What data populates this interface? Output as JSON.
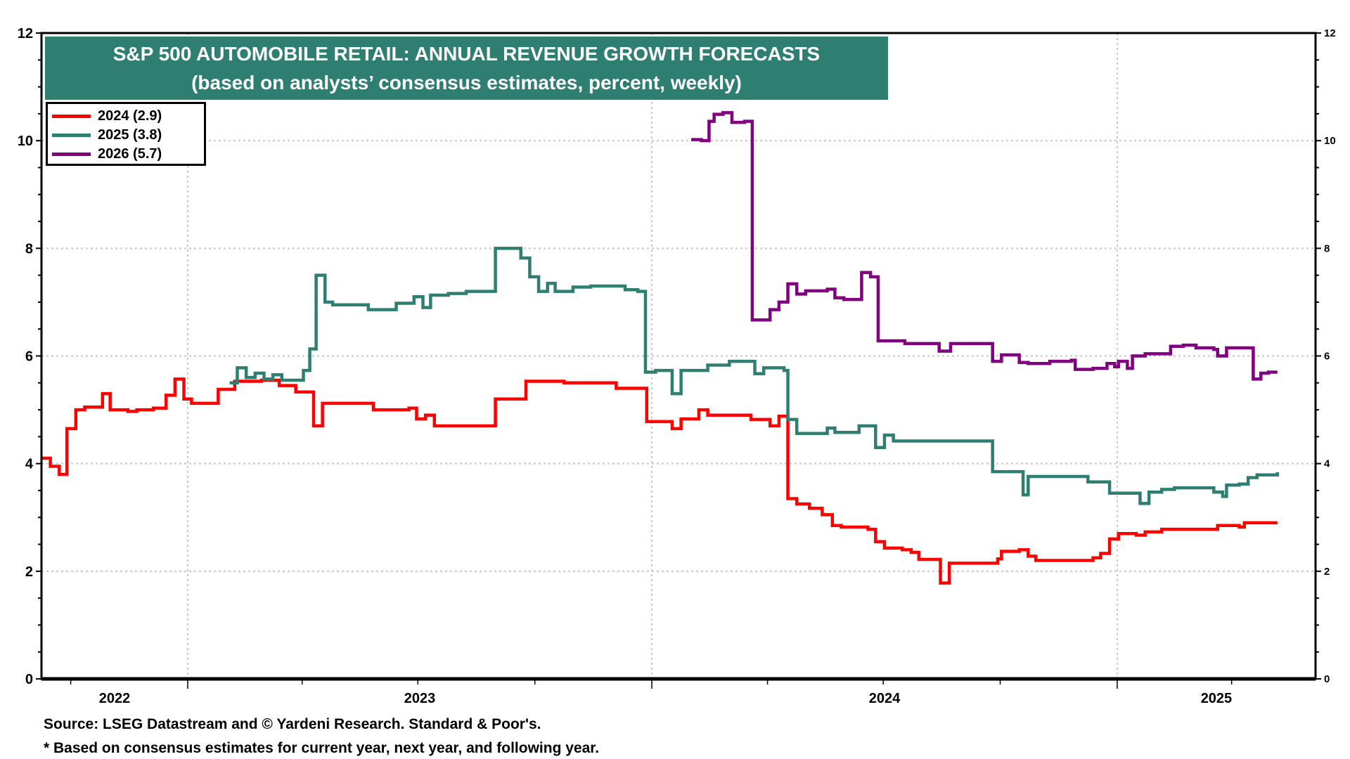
{
  "chart_data": {
    "type": "line",
    "title": "S&P 500 AUTOMOBILE RETAIL: ANNUAL REVENUE GROWTH FORECASTS",
    "subtitle": "(based on analysts’ consensus estimates, percent, weekly)",
    "xlabel": "",
    "ylabel": "",
    "xlim": [
      "2022-09-08",
      "2025-06-06"
    ],
    "ylim": [
      0,
      12
    ],
    "yticks": [
      "0",
      "2",
      "4",
      "6",
      "8",
      "10",
      "12"
    ],
    "xtick_labels": [
      "2022",
      "2023",
      "2024",
      "2025"
    ],
    "grid": true,
    "legend_position": "top-left",
    "step": true,
    "series": [
      {
        "name": "2024 (2.9)",
        "color": "#ff0000",
        "points": [
          [
            "2022-09-08",
            4.1
          ],
          [
            "2022-09-15",
            3.95
          ],
          [
            "2022-09-22",
            3.8
          ],
          [
            "2022-09-28",
            4.65
          ],
          [
            "2022-10-05",
            5.0
          ],
          [
            "2022-10-12",
            5.05
          ],
          [
            "2022-10-26",
            5.3
          ],
          [
            "2022-11-01",
            5.0
          ],
          [
            "2022-11-15",
            4.97
          ],
          [
            "2022-11-22",
            5.0
          ],
          [
            "2022-12-05",
            5.03
          ],
          [
            "2022-12-15",
            5.27
          ],
          [
            "2022-12-22",
            5.57
          ],
          [
            "2022-12-29",
            5.2
          ],
          [
            "2023-01-04",
            5.12
          ],
          [
            "2023-01-25",
            5.38
          ],
          [
            "2023-02-07",
            5.53
          ],
          [
            "2023-02-28",
            5.55
          ],
          [
            "2023-03-14",
            5.45
          ],
          [
            "2023-03-27",
            5.33
          ],
          [
            "2023-04-10",
            4.7
          ],
          [
            "2023-04-17",
            5.12
          ],
          [
            "2023-05-27",
            5.0
          ],
          [
            "2023-06-24",
            5.03
          ],
          [
            "2023-06-30",
            4.83
          ],
          [
            "2023-07-07",
            4.9
          ],
          [
            "2023-07-14",
            4.7
          ],
          [
            "2023-08-31",
            5.2
          ],
          [
            "2023-09-24",
            5.53
          ],
          [
            "2023-10-24",
            5.5
          ],
          [
            "2023-12-04",
            5.4
          ],
          [
            "2023-12-28",
            4.78
          ],
          [
            "2024-01-17",
            4.65
          ],
          [
            "2024-01-24",
            4.83
          ],
          [
            "2024-02-07",
            5.0
          ],
          [
            "2024-02-14",
            4.9
          ],
          [
            "2024-03-19",
            4.82
          ],
          [
            "2024-04-03",
            4.7
          ],
          [
            "2024-04-10",
            4.88
          ],
          [
            "2024-04-17",
            3.35
          ],
          [
            "2024-04-24",
            3.25
          ],
          [
            "2024-05-04",
            3.17
          ],
          [
            "2024-05-14",
            3.05
          ],
          [
            "2024-05-22",
            2.85
          ],
          [
            "2024-05-29",
            2.82
          ],
          [
            "2024-06-19",
            2.78
          ],
          [
            "2024-06-25",
            2.55
          ],
          [
            "2024-07-02",
            2.43
          ],
          [
            "2024-07-16",
            2.4
          ],
          [
            "2024-07-23",
            2.35
          ],
          [
            "2024-07-29",
            2.22
          ],
          [
            "2024-08-15",
            1.78
          ],
          [
            "2024-08-22",
            2.15
          ],
          [
            "2024-09-29",
            2.23
          ],
          [
            "2024-10-02",
            2.37
          ],
          [
            "2024-10-16",
            2.4
          ],
          [
            "2024-10-23",
            2.28
          ],
          [
            "2024-10-29",
            2.2
          ],
          [
            "2024-12-13",
            2.25
          ],
          [
            "2024-12-19",
            2.33
          ],
          [
            "2024-12-26",
            2.6
          ],
          [
            "2025-01-02",
            2.7
          ],
          [
            "2025-01-16",
            2.67
          ],
          [
            "2025-01-23",
            2.73
          ],
          [
            "2025-02-05",
            2.78
          ],
          [
            "2025-03-21",
            2.85
          ],
          [
            "2025-04-07",
            2.82
          ],
          [
            "2025-04-11",
            2.9
          ],
          [
            "2025-05-07",
            2.9
          ]
        ]
      },
      {
        "name": "2025 (3.8)",
        "color": "#2e7f71",
        "points": [
          [
            "2023-02-03",
            5.5
          ],
          [
            "2023-02-09",
            5.78
          ],
          [
            "2023-02-16",
            5.6
          ],
          [
            "2023-02-23",
            5.68
          ],
          [
            "2023-03-02",
            5.57
          ],
          [
            "2023-03-09",
            5.65
          ],
          [
            "2023-03-16",
            5.55
          ],
          [
            "2023-04-02",
            5.73
          ],
          [
            "2023-04-07",
            6.13
          ],
          [
            "2023-04-12",
            7.5
          ],
          [
            "2023-04-19",
            7.0
          ],
          [
            "2023-04-25",
            6.95
          ],
          [
            "2023-05-23",
            6.86
          ],
          [
            "2023-06-14",
            6.98
          ],
          [
            "2023-06-28",
            7.1
          ],
          [
            "2023-07-05",
            6.9
          ],
          [
            "2023-07-11",
            7.13
          ],
          [
            "2023-07-25",
            7.16
          ],
          [
            "2023-08-08",
            7.2
          ],
          [
            "2023-08-31",
            8.0
          ],
          [
            "2023-09-20",
            7.82
          ],
          [
            "2023-09-27",
            7.47
          ],
          [
            "2023-10-04",
            7.2
          ],
          [
            "2023-10-11",
            7.35
          ],
          [
            "2023-10-17",
            7.2
          ],
          [
            "2023-10-31",
            7.28
          ],
          [
            "2023-11-14",
            7.3
          ],
          [
            "2023-12-11",
            7.23
          ],
          [
            "2023-12-21",
            7.2
          ],
          [
            "2023-12-27",
            5.7
          ],
          [
            "2024-01-04",
            5.73
          ],
          [
            "2024-01-17",
            5.3
          ],
          [
            "2024-01-24",
            5.73
          ],
          [
            "2024-02-14",
            5.83
          ],
          [
            "2024-03-02",
            5.9
          ],
          [
            "2024-03-22",
            5.67
          ],
          [
            "2024-03-29",
            5.78
          ],
          [
            "2024-04-14",
            5.73
          ],
          [
            "2024-04-17",
            4.82
          ],
          [
            "2024-04-24",
            4.56
          ],
          [
            "2024-05-18",
            4.66
          ],
          [
            "2024-05-24",
            4.58
          ],
          [
            "2024-06-12",
            4.7
          ],
          [
            "2024-06-25",
            4.3
          ],
          [
            "2024-07-02",
            4.53
          ],
          [
            "2024-07-09",
            4.42
          ],
          [
            "2024-09-25",
            3.85
          ],
          [
            "2024-10-19",
            3.42
          ],
          [
            "2024-10-23",
            3.76
          ],
          [
            "2024-12-09",
            3.66
          ],
          [
            "2024-12-26",
            3.45
          ],
          [
            "2025-01-19",
            3.26
          ],
          [
            "2025-01-26",
            3.47
          ],
          [
            "2025-02-05",
            3.52
          ],
          [
            "2025-02-15",
            3.55
          ],
          [
            "2025-03-18",
            3.47
          ],
          [
            "2025-03-25",
            3.39
          ],
          [
            "2025-03-28",
            3.6
          ],
          [
            "2025-04-07",
            3.62
          ],
          [
            "2025-04-14",
            3.74
          ],
          [
            "2025-04-21",
            3.79
          ],
          [
            "2025-05-07",
            3.84
          ]
        ]
      },
      {
        "name": "2026 (5.7)",
        "color": "#800080",
        "points": [
          [
            "2024-02-01",
            10.02
          ],
          [
            "2024-02-09",
            10.0
          ],
          [
            "2024-02-15",
            10.36
          ],
          [
            "2024-02-19",
            10.49
          ],
          [
            "2024-02-26",
            10.52
          ],
          [
            "2024-03-04",
            10.34
          ],
          [
            "2024-03-14",
            10.36
          ],
          [
            "2024-03-20",
            6.67
          ],
          [
            "2024-04-03",
            6.86
          ],
          [
            "2024-04-10",
            7.0
          ],
          [
            "2024-04-17",
            7.34
          ],
          [
            "2024-04-24",
            7.15
          ],
          [
            "2024-05-01",
            7.21
          ],
          [
            "2024-05-18",
            7.24
          ],
          [
            "2024-05-24",
            7.08
          ],
          [
            "2024-05-31",
            7.05
          ],
          [
            "2024-06-14",
            7.55
          ],
          [
            "2024-06-21",
            7.47
          ],
          [
            "2024-06-27",
            6.28
          ],
          [
            "2024-07-18",
            6.23
          ],
          [
            "2024-08-14",
            6.09
          ],
          [
            "2024-08-23",
            6.23
          ],
          [
            "2024-09-25",
            5.9
          ],
          [
            "2024-10-02",
            6.02
          ],
          [
            "2024-10-16",
            5.88
          ],
          [
            "2024-10-23",
            5.86
          ],
          [
            "2024-11-09",
            5.9
          ],
          [
            "2024-11-26",
            5.92
          ],
          [
            "2024-11-29",
            5.75
          ],
          [
            "2024-12-13",
            5.77
          ],
          [
            "2024-12-24",
            5.86
          ],
          [
            "2024-12-30",
            5.8
          ],
          [
            "2025-01-02",
            5.9
          ],
          [
            "2025-01-09",
            5.77
          ],
          [
            "2025-01-13",
            6.0
          ],
          [
            "2025-01-23",
            6.04
          ],
          [
            "2025-02-12",
            6.18
          ],
          [
            "2025-02-22",
            6.2
          ],
          [
            "2025-03-04",
            6.15
          ],
          [
            "2025-03-18",
            6.12
          ],
          [
            "2025-03-21",
            6.0
          ],
          [
            "2025-03-28",
            6.15
          ],
          [
            "2025-04-18",
            5.57
          ],
          [
            "2025-04-24",
            5.68
          ],
          [
            "2025-04-30",
            5.7
          ],
          [
            "2025-05-07",
            5.7
          ]
        ]
      }
    ]
  },
  "footer": {
    "source": "Source: LSEG Datastream and © Yardeni Research. Standard & Poor's.",
    "note": "* Based on consensus estimates for current year, next year, and following year."
  }
}
